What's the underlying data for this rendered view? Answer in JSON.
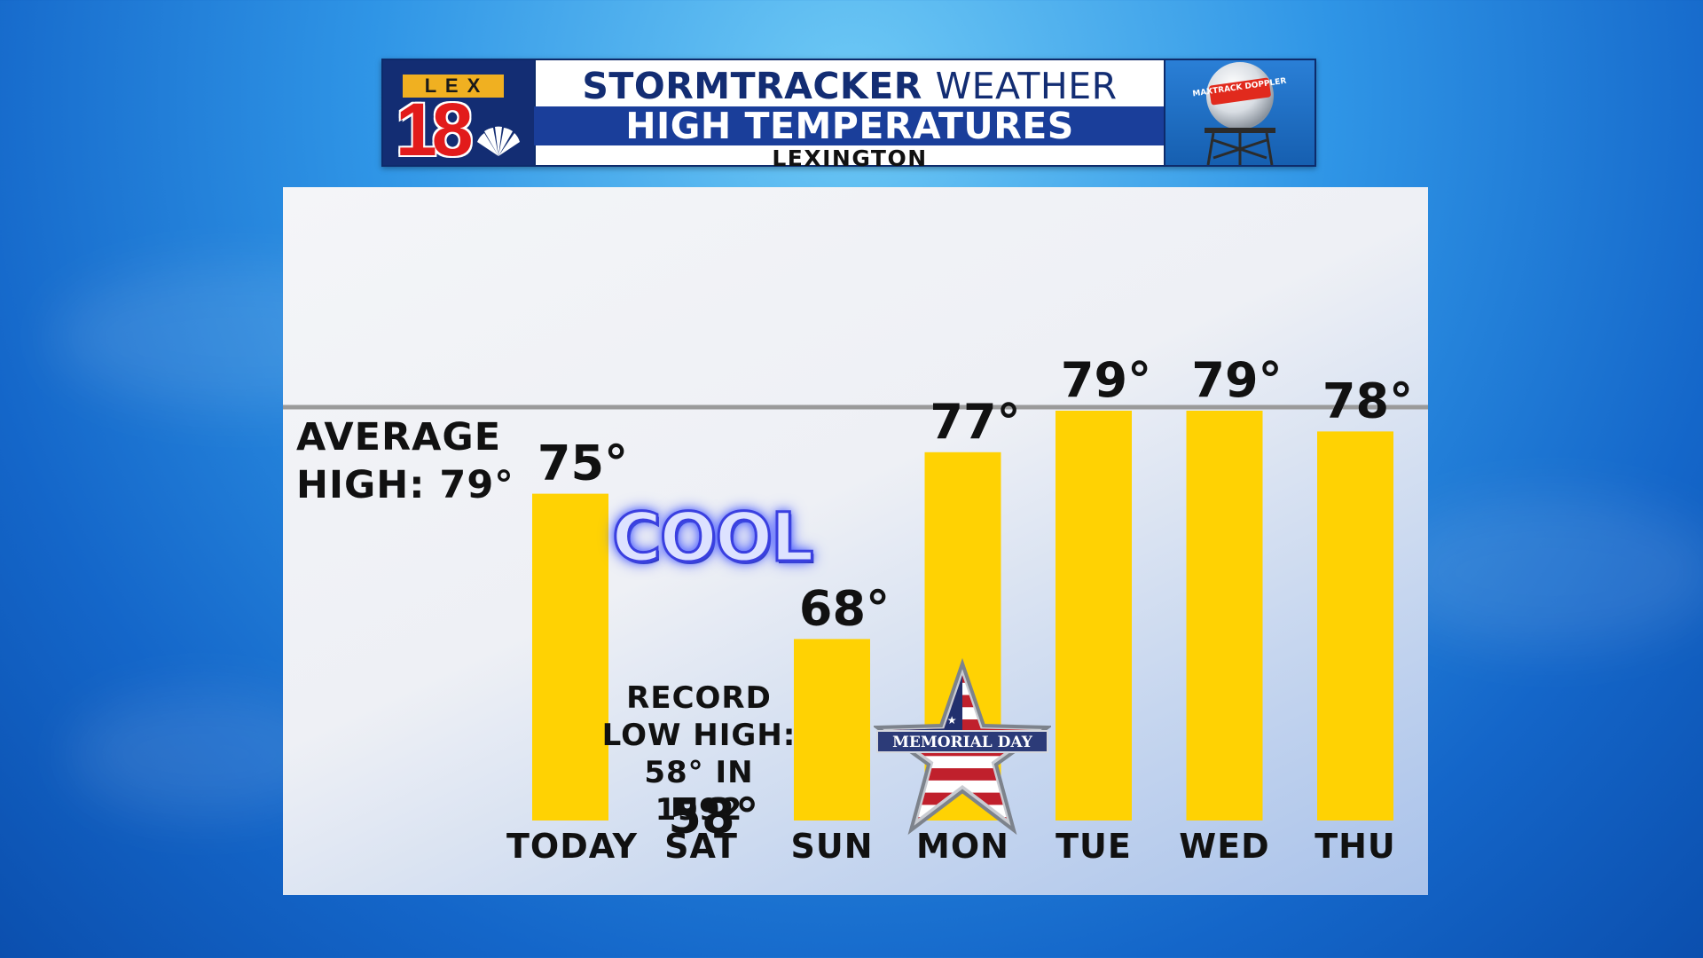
{
  "header": {
    "brand_lex": "L E X",
    "brand_number": "18",
    "title_bold": "STORMTRACKER",
    "title_rest": "WEATHER",
    "subtitle": "HIGH TEMPERATURES",
    "location": "LEXINGTON",
    "radar_badge": "MAXTRACK DOPPLER"
  },
  "annotations": {
    "average_line1": "AVERAGE",
    "average_line2": "HIGH: 79°",
    "cool": "COOL",
    "record_l1": "RECORD",
    "record_l2": "LOW HIGH:",
    "record_l3": "58° IN",
    "record_l4": "1992",
    "memorial_day": "MEMORIAL DAY"
  },
  "colors": {
    "bar": "#ffd203",
    "header_navy": "#132d73",
    "header_blue": "#1a3e9a",
    "logo_red": "#e21b1b",
    "logo_gold": "#f0b021"
  },
  "chart_data": {
    "type": "bar",
    "title": "HIGH TEMPERATURES",
    "categories": [
      "TODAY",
      "SAT",
      "SUN",
      "MON",
      "TUE",
      "WED",
      "THU"
    ],
    "values": [
      75,
      58,
      68,
      77,
      79,
      79,
      78
    ],
    "value_labels": [
      "75°",
      "58°",
      "68°",
      "77°",
      "79°",
      "79°",
      "78°"
    ],
    "reference_line": {
      "label": "AVERAGE HIGH: 79°",
      "value": 79
    },
    "xlabel": "",
    "ylabel": ""
  }
}
